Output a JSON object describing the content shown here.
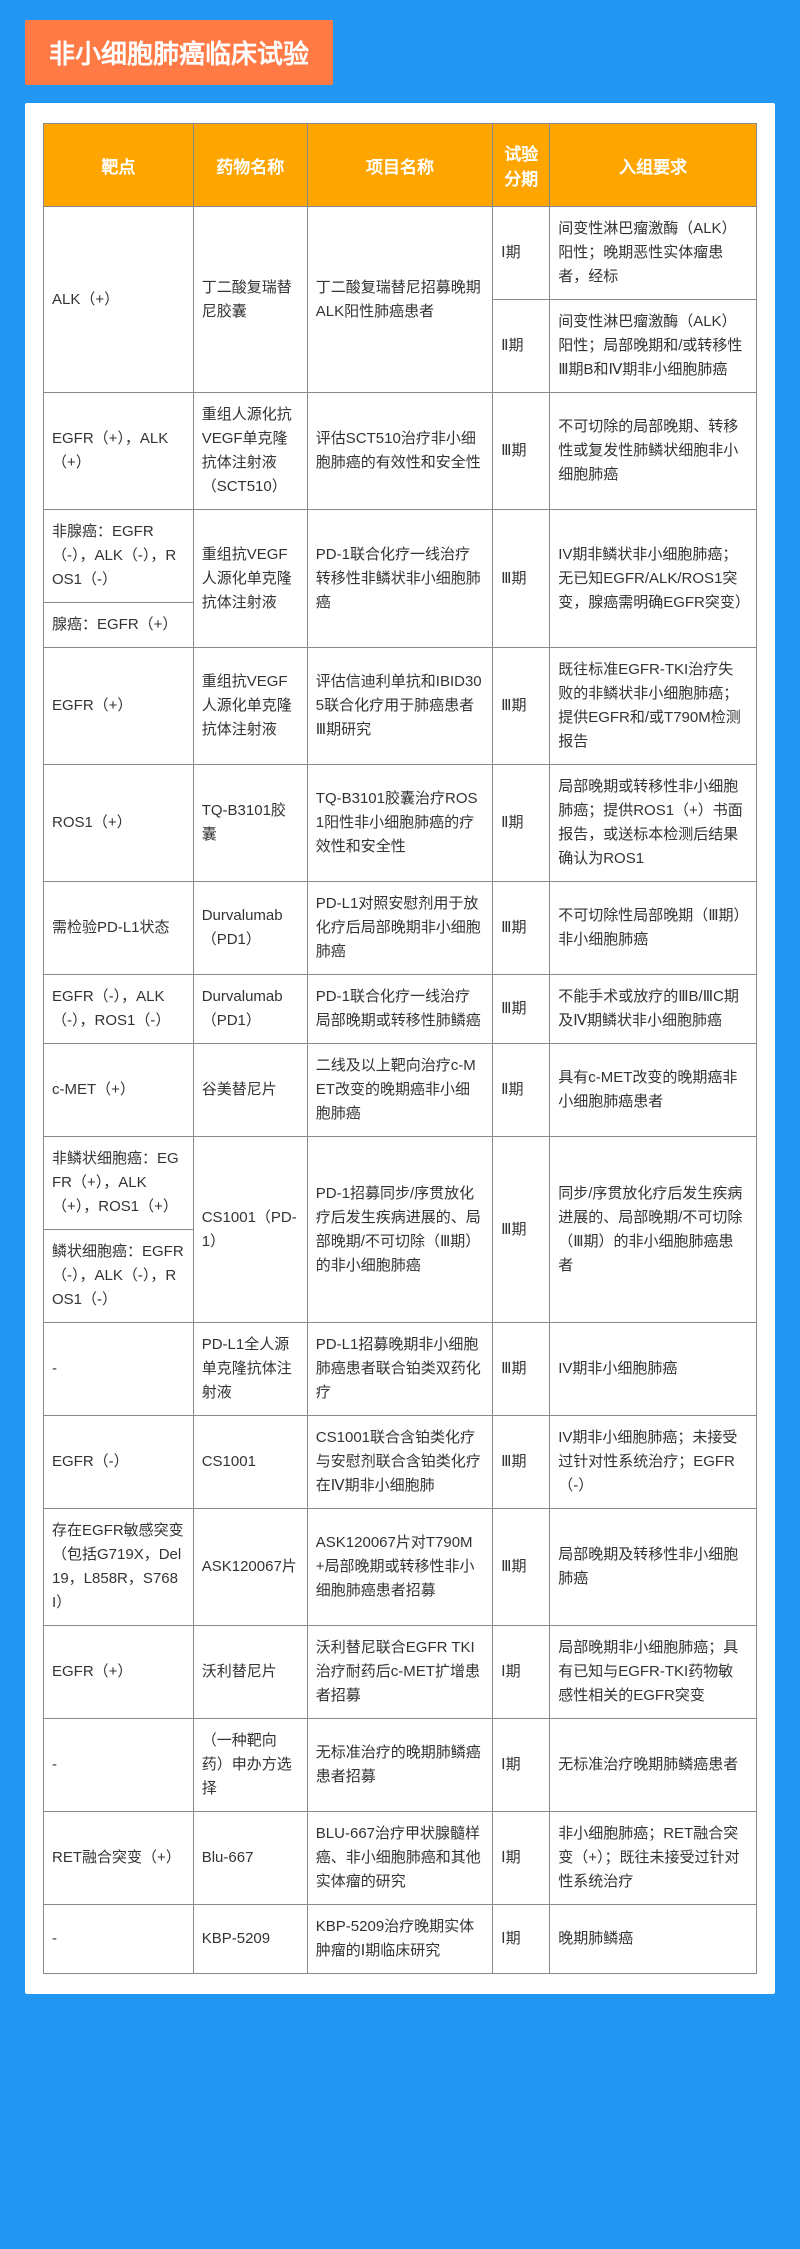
{
  "page_title": "非小细胞肺癌临床试验",
  "columns": [
    "靶点",
    "药物名称",
    "项目名称",
    "试验分期",
    "入组要求"
  ],
  "rows": [
    {
      "c0": "ALK（+）",
      "c0_rs": 2,
      "c1": "丁二酸复瑞替尼胶囊",
      "c1_rs": 2,
      "c2": "丁二酸复瑞替尼招募晚期ALK阳性肺癌患者",
      "c2_rs": 2,
      "c3": "Ⅰ期",
      "c4": "间变性淋巴瘤激酶（ALK）阳性；晚期恶性实体瘤患者，经标"
    },
    {
      "c3": "Ⅱ期",
      "c4": "间变性淋巴瘤激酶（ALK）阳性；局部晚期和/或转移性Ⅲ期B和Ⅳ期非小细胞肺癌"
    },
    {
      "c0": "EGFR（+），ALK（+）",
      "c1": "重组人源化抗VEGF单克隆抗体注射液（SCT510）",
      "c2": "评估SCT510治疗非小细胞肺癌的有效性和安全性",
      "c3": "Ⅲ期",
      "c4": "不可切除的局部晚期、转移性或复发性肺鳞状细胞非小细胞肺癌"
    },
    {
      "c0": "非腺癌：EGFR（-），ALK（-），ROS1（-）",
      "c1": "重组抗VEGF人源化单克隆抗体注射液",
      "c1_rs": 2,
      "c2": "PD-1联合化疗一线治疗转移性非鳞状非小细胞肺癌",
      "c2_rs": 2,
      "c3": "Ⅲ期",
      "c3_rs": 2,
      "c4": "IV期非鳞状非小细胞肺癌；无已知EGFR/ALK/ROS1突变，腺癌需明确EGFR突变）",
      "c4_rs": 2
    },
    {
      "c0": "腺癌：EGFR（+）"
    },
    {
      "c0": "EGFR（+）",
      "c1": "重组抗VEGF人源化单克隆抗体注射液",
      "c2": "评估信迪利单抗和IBID305联合化疗用于肺癌患者Ⅲ期研究",
      "c3": "Ⅲ期",
      "c4": "既往标准EGFR-TKI治疗失败的非鳞状非小细胞肺癌；提供EGFR和/或T790M检测报告"
    },
    {
      "c0": "ROS1（+）",
      "c1": "TQ-B3101胶囊",
      "c2": "TQ-B3101胶囊治疗ROS1阳性非小细胞肺癌的疗效性和安全性",
      "c3": "Ⅱ期",
      "c4": "局部晚期或转移性非小细胞肺癌；提供ROS1（+）书面报告，或送标本检测后结果确认为ROS1"
    },
    {
      "c0": "需检验PD-L1状态",
      "c1": "Durvalumab（PD1）",
      "c2": "PD-L1对照安慰剂用于放化疗后局部晚期非小细胞肺癌",
      "c3": "Ⅲ期",
      "c4": "不可切除性局部晚期（Ⅲ期）非小细胞肺癌"
    },
    {
      "c0": "EGFR（-），ALK（-），ROS1（-）",
      "c1": "Durvalumab（PD1）",
      "c2": "PD-1联合化疗一线治疗局部晚期或转移性肺鳞癌",
      "c3": "Ⅲ期",
      "c4": "不能手术或放疗的ⅢB/ⅢC期及Ⅳ期鳞状非小细胞肺癌"
    },
    {
      "c0": "c-MET（+）",
      "c1": "谷美替尼片",
      "c2": "二线及以上靶向治疗c-MET改变的晚期癌非小细胞肺癌",
      "c3": "Ⅱ期",
      "c4": "具有c-MET改变的晚期癌非小细胞肺癌患者"
    },
    {
      "c0": "非鳞状细胞癌：EGFR（+），ALK（+），ROS1（+）",
      "c1": "CS1001（PD-1）",
      "c1_rs": 2,
      "c2": "PD-1招募同步/序贯放化疗后发生疾病进展的、局部晚期/不可切除（Ⅲ期）的非小细胞肺癌",
      "c2_rs": 2,
      "c3": "Ⅲ期",
      "c3_rs": 2,
      "c4": "同步/序贯放化疗后发生疾病进展的、局部晚期/不可切除（Ⅲ期）的非小细胞肺癌患者",
      "c4_rs": 2
    },
    {
      "c0": "鳞状细胞癌：EGFR（-），ALK（-），ROS1（-）"
    },
    {
      "c0": "-",
      "c1": "PD-L1全人源单克隆抗体注射液",
      "c2": "PD-L1招募晚期非小细胞肺癌患者联合铂类双药化疗",
      "c3": "Ⅲ期",
      "c4": "IV期非小细胞肺癌"
    },
    {
      "c0": "EGFR（-）",
      "c1": "CS1001",
      "c2": "CS1001联合含铂类化疗与安慰剂联合含铂类化疗在Ⅳ期非小细胞肺",
      "c3": "Ⅲ期",
      "c4": "IV期非小细胞肺癌；未接受过针对性系统治疗；EGFR（-）"
    },
    {
      "c0": "存在EGFR敏感突变（包括G719X，Del 19，L858R，S768I）",
      "c1": "ASK120067片",
      "c2": "ASK120067片对T790M+局部晚期或转移性非小细胞肺癌患者招募",
      "c3": "Ⅲ期",
      "c4": "局部晚期及转移性非小细胞肺癌"
    },
    {
      "c0": "EGFR（+）",
      "c1": "沃利替尼片",
      "c2": "沃利替尼联合EGFR TKI治疗耐药后c-MET扩增患者招募",
      "c3": "Ⅰ期",
      "c4": "局部晚期非小细胞肺癌；具有已知与EGFR-TKI药物敏感性相关的EGFR突变"
    },
    {
      "c0": "-",
      "c1": "（一种靶向药）申办方选择",
      "c2": "无标准治疗的晚期肺鳞癌患者招募",
      "c3": "Ⅰ期",
      "c4": "无标准治疗晚期肺鳞癌患者"
    },
    {
      "c0": "RET融合突变（+）",
      "c1": "Blu-667",
      "c2": "BLU-667治疗甲状腺髓样癌、非小细胞肺癌和其他实体瘤的研究",
      "c3": "Ⅰ期",
      "c4": "非小细胞肺癌；RET融合突变（+）；既往未接受过针对性系统治疗"
    },
    {
      "c0": "-",
      "c1": "KBP-5209",
      "c2": "KBP-5209治疗晚期实体肿瘤的Ⅰ期临床研究",
      "c3": "Ⅰ期",
      "c4": "晚期肺鳞癌"
    }
  ],
  "colors": {
    "page_bg": "#2196f3",
    "title_bg": "#ff7a45",
    "header_bg": "#ffa500",
    "text": "#333333",
    "border": "#888888"
  }
}
